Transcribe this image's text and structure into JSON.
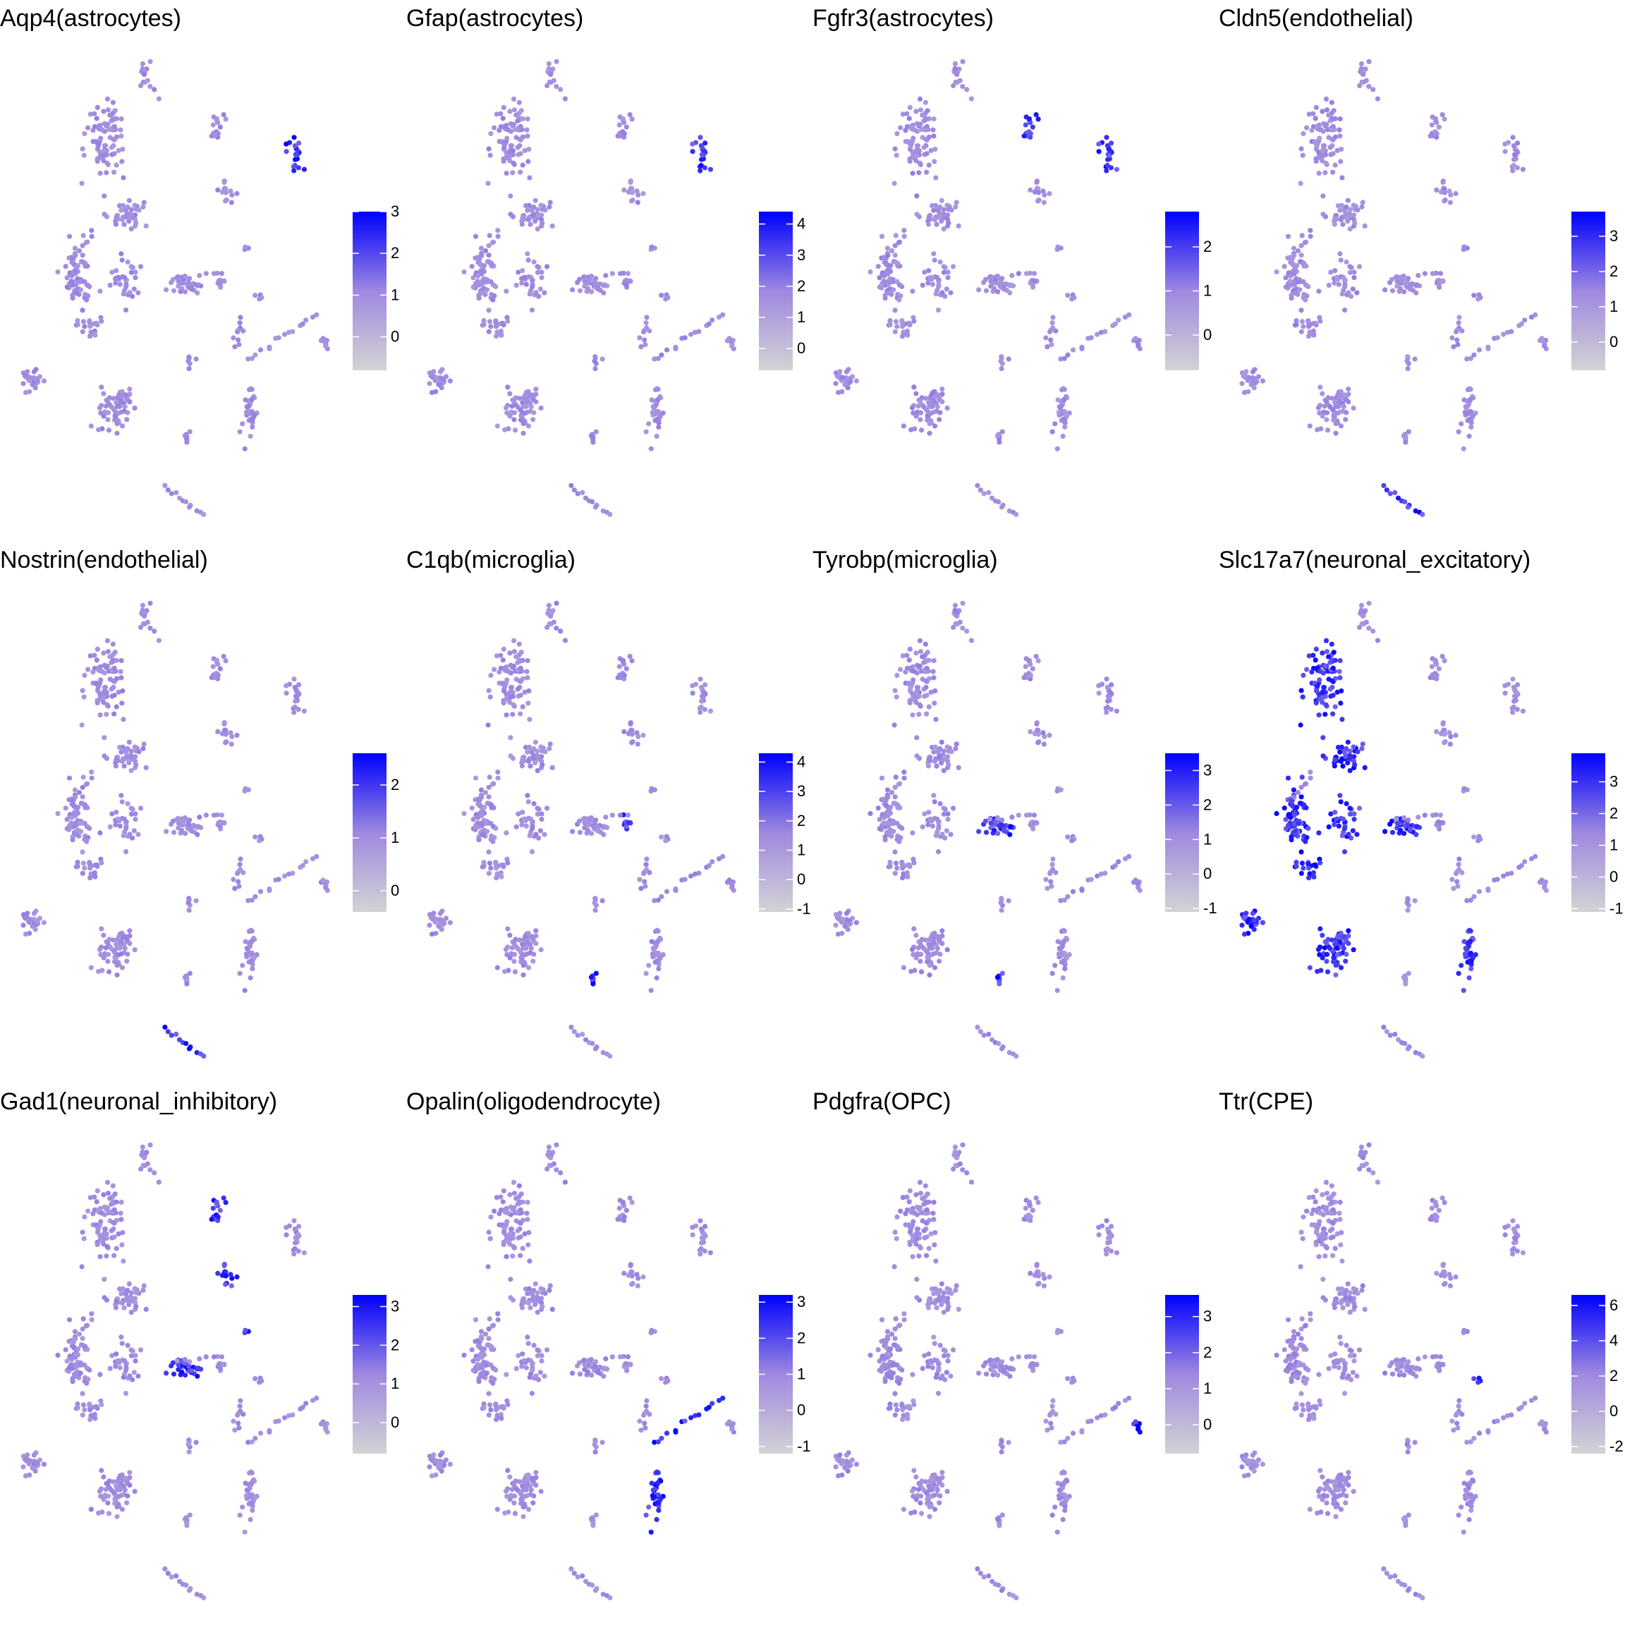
{
  "chart_data": [
    {
      "type": "scatter",
      "title": "Aqp4(astrocytes)",
      "gene": "Aqp4",
      "cell_type": "astrocytes",
      "colorbar": {
        "ticks": [
          0,
          1,
          2,
          3
        ],
        "min": -0.8,
        "max": 3.0
      }
    },
    {
      "type": "scatter",
      "title": "Gfap(astrocytes)",
      "gene": "Gfap",
      "cell_type": "astrocytes",
      "colorbar": {
        "ticks": [
          0,
          1,
          2,
          3,
          4
        ],
        "min": -0.7,
        "max": 4.4
      }
    },
    {
      "type": "scatter",
      "title": "Fgfr3(astrocytes)",
      "gene": "Fgfr3",
      "cell_type": "astrocytes",
      "colorbar": {
        "ticks": [
          0,
          1,
          2
        ],
        "min": -0.8,
        "max": 2.8
      }
    },
    {
      "type": "scatter",
      "title": "Cldn5(endothelial)",
      "gene": "Cldn5",
      "cell_type": "endothelial",
      "colorbar": {
        "ticks": [
          0,
          1,
          2,
          3
        ],
        "min": -0.8,
        "max": 3.7
      }
    },
    {
      "type": "scatter",
      "title": "Nostrin(endothelial)",
      "gene": "Nostrin",
      "cell_type": "endothelial",
      "colorbar": {
        "ticks": [
          0,
          1,
          2
        ],
        "min": -0.4,
        "max": 2.6
      }
    },
    {
      "type": "scatter",
      "title": "C1qb(microglia)",
      "gene": "C1qb",
      "cell_type": "microglia",
      "colorbar": {
        "ticks": [
          -1,
          0,
          1,
          2,
          3,
          4
        ],
        "min": -1.1,
        "max": 4.3
      }
    },
    {
      "type": "scatter",
      "title": "Tyrobp(microglia)",
      "gene": "Tyrobp",
      "cell_type": "microglia",
      "colorbar": {
        "ticks": [
          -1,
          0,
          1,
          2,
          3
        ],
        "min": -1.1,
        "max": 3.5
      }
    },
    {
      "type": "scatter",
      "title": "Slc17a7(neuronal_excitatory)",
      "gene": "Slc17a7",
      "cell_type": "neuronal_excitatory",
      "colorbar": {
        "ticks": [
          -1,
          0,
          1,
          2,
          3
        ],
        "min": -1.1,
        "max": 3.9
      }
    },
    {
      "type": "scatter",
      "title": "Gad1(neuronal_inhibitory)",
      "gene": "Gad1",
      "cell_type": "neuronal_inhibitory",
      "colorbar": {
        "ticks": [
          0,
          1,
          2,
          3
        ],
        "min": -0.8,
        "max": 3.3
      }
    },
    {
      "type": "scatter",
      "title": "Opalin(oligodendrocyte)",
      "gene": "Opalin",
      "cell_type": "oligodendrocyte",
      "colorbar": {
        "ticks": [
          -1,
          0,
          1,
          2,
          3
        ],
        "min": -1.2,
        "max": 3.2
      }
    },
    {
      "type": "scatter",
      "title": "Pdgfra(OPC)",
      "gene": "Pdgfra",
      "cell_type": "OPC",
      "colorbar": {
        "ticks": [
          0,
          1,
          2,
          3
        ],
        "min": -0.8,
        "max": 3.6
      }
    },
    {
      "type": "scatter",
      "title": "Ttr(CPE)",
      "gene": "Ttr",
      "cell_type": "CPE",
      "colorbar": {
        "ticks": [
          -2,
          0,
          2,
          4,
          6
        ],
        "min": -2.4,
        "max": 6.6
      }
    }
  ],
  "colors": {
    "low": "#d3d3d3",
    "mid": "#9f88e0",
    "high": "#0000ff",
    "base_point": "#a592de"
  }
}
